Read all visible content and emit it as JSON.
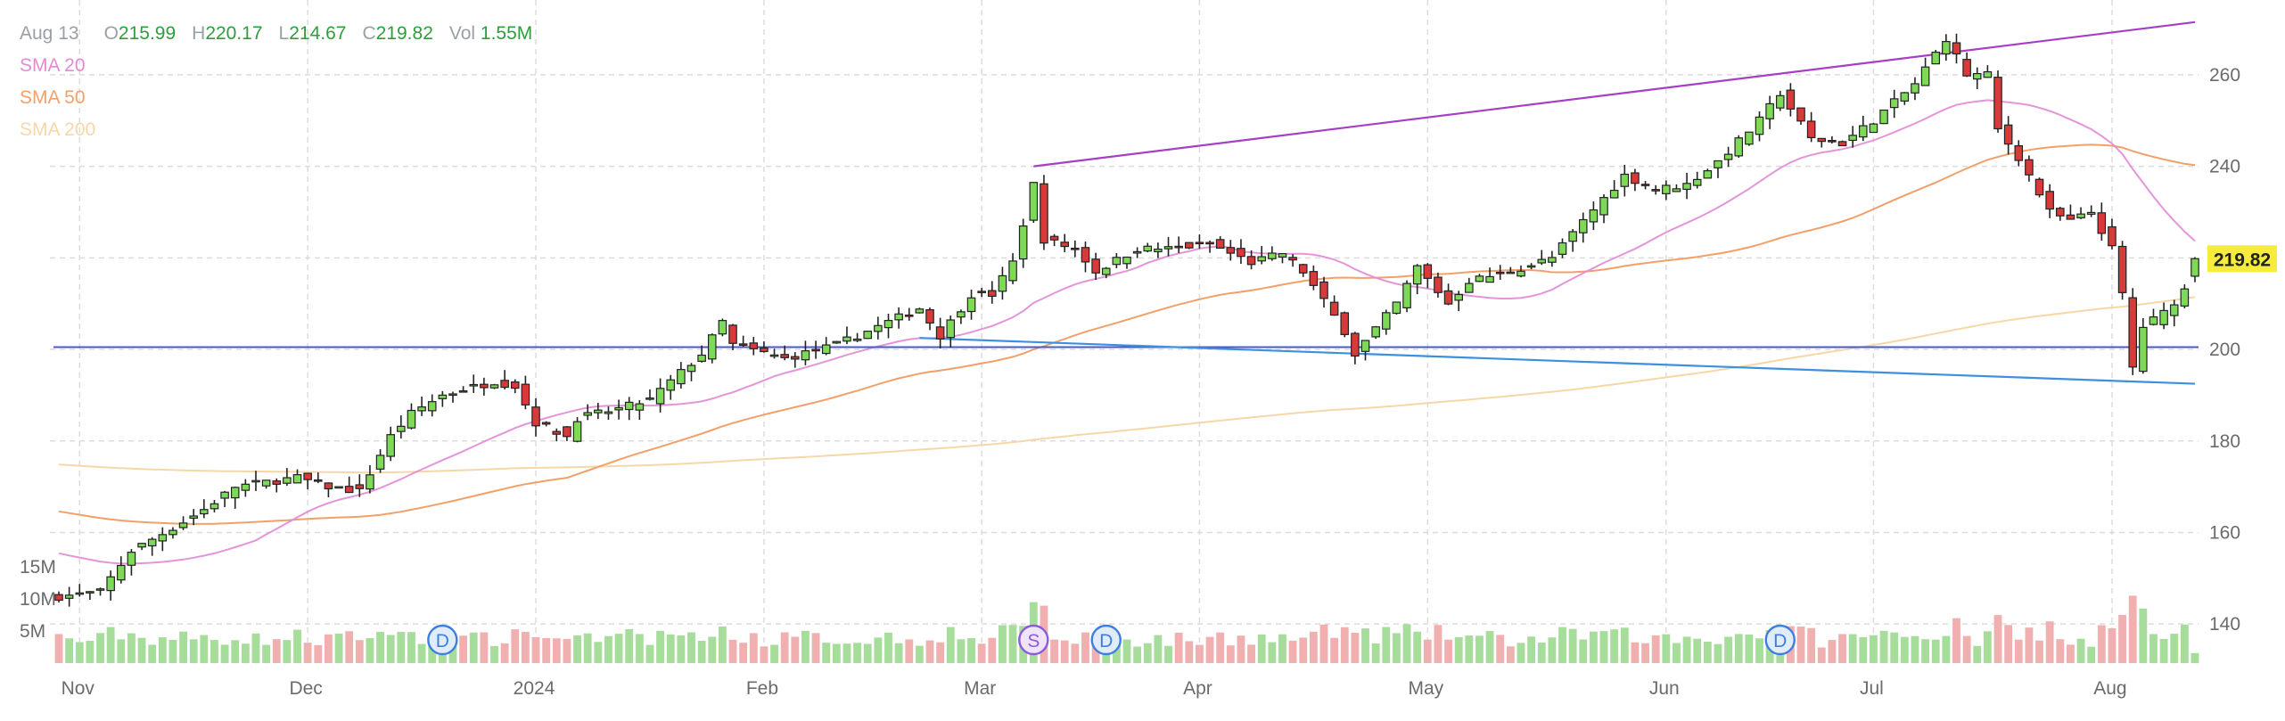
{
  "header": {
    "date": "Aug 13",
    "open_label": "O",
    "open": "215.99",
    "high_label": "H",
    "high": "220.17",
    "low_label": "L",
    "low": "214.67",
    "close_label": "C",
    "close": "219.82",
    "volume_label": "Vol",
    "volume": "1.55M"
  },
  "indicators": [
    {
      "name": "SMA 20",
      "color": "#e18ad6"
    },
    {
      "name": "SMA 50",
      "color": "#f2a06a"
    },
    {
      "name": "SMA 200",
      "color": "#f6d8a8"
    }
  ],
  "colors": {
    "up": "#7ed957",
    "down": "#d83a3a",
    "up_volume": "#a6dd9a",
    "down_volume": "#f1b0b0",
    "price_tag": "#f5ec3b",
    "upper_trend": "#a63fc4",
    "lower_trend": "#3d8fe0",
    "support": "#4a58c8"
  },
  "last_price_tag": "219.82",
  "chart_data": {
    "type": "candlestick",
    "price_axis": {
      "ticks": [
        140,
        160,
        180,
        200,
        220,
        240,
        260
      ],
      "tick_labels": [
        "140",
        "160",
        "180",
        "200",
        "",
        "240",
        "260"
      ],
      "range": [
        134,
        274
      ]
    },
    "volume_axis": {
      "tick_labels": [
        "5M",
        "10M",
        "15M"
      ],
      "ticks": [
        5,
        10,
        15
      ],
      "unit": "M"
    },
    "x_labels": [
      "Nov",
      "Dec",
      "2024",
      "Feb",
      "Mar",
      "Apr",
      "May",
      "Jun",
      "Jul",
      "Aug"
    ],
    "x_label_dates": [
      "2023-11-01",
      "2023-12-01",
      "2024-01-02",
      "2024-02-01",
      "2024-03-01",
      "2024-04-01",
      "2024-05-01",
      "2024-06-03",
      "2024-07-01",
      "2024-08-01"
    ],
    "events": [
      {
        "date": "2023-12-20",
        "label": "D"
      },
      {
        "date": "2024-03-08",
        "label": "S"
      },
      {
        "date": "2024-03-19",
        "label": "D"
      },
      {
        "date": "2024-06-18",
        "label": "D"
      }
    ],
    "keypoints": [
      [
        "2023-10-30",
        146
      ],
      [
        "2023-11-03",
        147
      ],
      [
        "2023-11-08",
        156
      ],
      [
        "2023-11-14",
        161
      ],
      [
        "2023-11-17",
        165
      ],
      [
        "2023-11-22",
        170
      ],
      [
        "2023-11-30",
        172
      ],
      [
        "2023-12-05",
        170
      ],
      [
        "2023-12-08",
        169
      ],
      [
        "2023-12-13",
        181
      ],
      [
        "2023-12-15",
        186
      ],
      [
        "2023-12-20",
        190
      ],
      [
        "2023-12-27",
        193
      ],
      [
        "2023-12-29",
        192
      ],
      [
        "2024-01-02",
        184
      ],
      [
        "2024-01-05",
        181
      ],
      [
        "2024-01-08",
        185
      ],
      [
        "2024-01-12",
        187
      ],
      [
        "2024-01-17",
        189
      ],
      [
        "2024-01-24",
        199
      ],
      [
        "2024-01-26",
        206
      ],
      [
        "2024-01-29",
        201
      ],
      [
        "2024-02-05",
        198
      ],
      [
        "2024-02-12",
        201
      ],
      [
        "2024-02-16",
        205
      ],
      [
        "2024-02-22",
        209
      ],
      [
        "2024-02-26",
        203
      ],
      [
        "2024-02-29",
        212
      ],
      [
        "2024-03-04",
        212
      ],
      [
        "2024-03-06",
        219
      ],
      [
        "2024-03-08",
        236
      ],
      [
        "2024-03-11",
        224
      ],
      [
        "2024-03-14",
        222
      ],
      [
        "2024-03-18",
        217
      ],
      [
        "2024-03-22",
        222
      ],
      [
        "2024-03-27",
        222
      ],
      [
        "2024-04-02",
        223
      ],
      [
        "2024-04-08",
        219
      ],
      [
        "2024-04-11",
        221
      ],
      [
        "2024-04-15",
        217
      ],
      [
        "2024-04-19",
        204
      ],
      [
        "2024-04-22",
        199
      ],
      [
        "2024-04-26",
        210
      ],
      [
        "2024-04-30",
        218
      ],
      [
        "2024-05-03",
        210
      ],
      [
        "2024-05-07",
        215
      ],
      [
        "2024-05-13",
        217
      ],
      [
        "2024-05-17",
        220
      ],
      [
        "2024-05-22",
        228
      ],
      [
        "2024-05-28",
        238
      ],
      [
        "2024-05-31",
        235
      ],
      [
        "2024-06-05",
        236
      ],
      [
        "2024-06-10",
        241
      ],
      [
        "2024-06-14",
        250
      ],
      [
        "2024-06-18",
        256
      ],
      [
        "2024-06-21",
        246
      ],
      [
        "2024-06-26",
        245
      ],
      [
        "2024-07-01",
        250
      ],
      [
        "2024-07-05",
        258
      ],
      [
        "2024-07-10",
        268
      ],
      [
        "2024-07-12",
        260
      ],
      [
        "2024-07-16",
        260
      ],
      [
        "2024-07-17",
        248
      ],
      [
        "2024-07-19",
        242
      ],
      [
        "2024-07-24",
        230
      ],
      [
        "2024-07-26",
        228
      ],
      [
        "2024-07-30",
        230
      ],
      [
        "2024-08-01",
        222
      ],
      [
        "2024-08-02",
        212
      ],
      [
        "2024-08-05",
        196
      ],
      [
        "2024-08-06",
        205
      ],
      [
        "2024-08-08",
        208
      ],
      [
        "2024-08-12",
        213
      ],
      [
        "2024-08-13",
        219.82
      ]
    ],
    "last_candle": {
      "date": "2024-08-13",
      "open": 215.99,
      "high": 220.17,
      "low": 214.67,
      "close": 219.82,
      "volume_m": 1.55
    },
    "trendlines": [
      {
        "from": [
          "2024-03-08",
          240
        ],
        "to": [
          "2024-08-13",
          271.5
        ]
      },
      {
        "from": [
          "2024-02-22",
          202.5
        ],
        "to": [
          "2024-08-13",
          192.5
        ]
      }
    ],
    "horizontal_lines": [
      200.5
    ],
    "grid": true
  }
}
